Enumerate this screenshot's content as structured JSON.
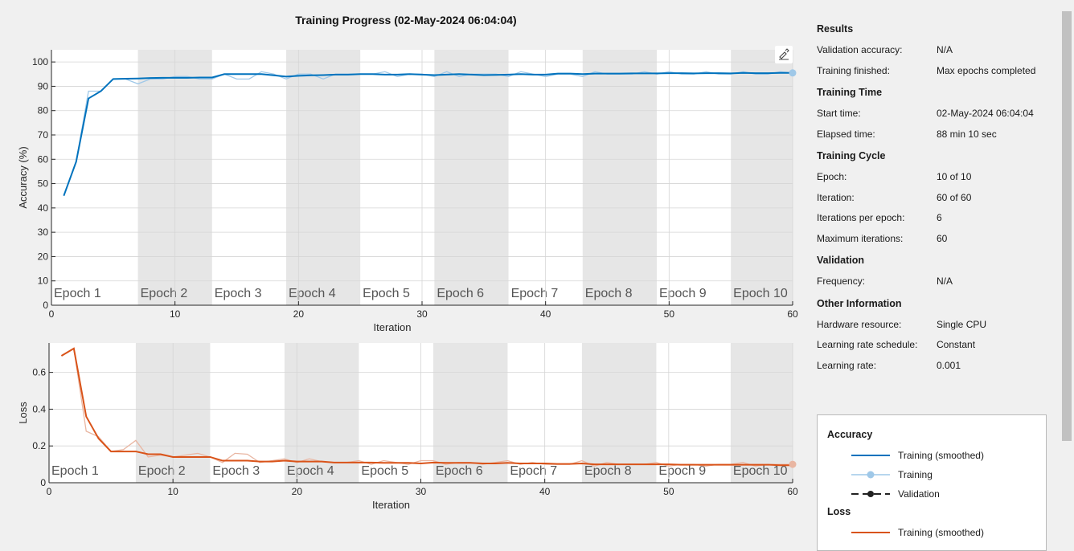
{
  "title": "Training Progress (02-May-2024 06:04:04)",
  "colors": {
    "smoothed": "#0072BD",
    "training": "#9fc8e8",
    "loss_smoothed": "#D95319",
    "loss_training": "#e9b6a2",
    "epoch_shade": "#e6e6e6"
  },
  "info": {
    "sections": [
      {
        "heading": "Results",
        "rows": [
          {
            "key": "Validation accuracy:",
            "value": "N/A"
          },
          {
            "key": "Training finished:",
            "value": "Max epochs completed"
          }
        ]
      },
      {
        "heading": "Training Time",
        "rows": [
          {
            "key": "Start time:",
            "value": "02-May-2024 06:04:04"
          },
          {
            "key": "Elapsed time:",
            "value": "88 min 10 sec"
          }
        ]
      },
      {
        "heading": "Training Cycle",
        "rows": [
          {
            "key": "Epoch:",
            "value": "10 of 10"
          },
          {
            "key": "Iteration:",
            "value": "60 of 60"
          },
          {
            "key": "Iterations per epoch:",
            "value": "6"
          },
          {
            "key": "Maximum iterations:",
            "value": "60"
          }
        ]
      },
      {
        "heading": "Validation",
        "rows": [
          {
            "key": "Frequency:",
            "value": "N/A"
          }
        ]
      },
      {
        "heading": "Other Information",
        "rows": [
          {
            "key": "Hardware resource:",
            "value": "Single CPU"
          },
          {
            "key": "Learning rate schedule:",
            "value": "Constant"
          },
          {
            "key": "Learning rate:",
            "value": "0.001"
          }
        ]
      }
    ]
  },
  "legend": {
    "accuracy_heading": "Accuracy",
    "accuracy_items": [
      {
        "label": "Training (smoothed)",
        "style": "smoothed"
      },
      {
        "label": "Training",
        "style": "training"
      },
      {
        "label": "Validation",
        "style": "validation"
      }
    ],
    "loss_heading": "Loss",
    "loss_items": [
      {
        "label": "Training (smoothed)",
        "style": "loss_smoothed"
      }
    ]
  },
  "chart_data": [
    {
      "type": "line",
      "ylabel": "Accuracy (%)",
      "xlabel": "Iteration",
      "xlim": [
        0,
        60
      ],
      "ylim": [
        0,
        105
      ],
      "xticks": [
        0,
        10,
        20,
        30,
        40,
        50,
        60
      ],
      "yticks": [
        0,
        10,
        20,
        30,
        40,
        50,
        60,
        70,
        80,
        90,
        100
      ],
      "epochs": [
        "Epoch 1",
        "Epoch 2",
        "Epoch 3",
        "Epoch 4",
        "Epoch 5",
        "Epoch 6",
        "Epoch 7",
        "Epoch 8",
        "Epoch 9",
        "Epoch 10"
      ],
      "iterations_per_epoch": 6,
      "x": [
        1,
        2,
        3,
        4,
        5,
        6,
        7,
        8,
        9,
        10,
        11,
        12,
        13,
        14,
        15,
        16,
        17,
        18,
        19,
        20,
        21,
        22,
        23,
        24,
        25,
        26,
        27,
        28,
        29,
        30,
        31,
        32,
        33,
        34,
        35,
        36,
        37,
        38,
        39,
        40,
        41,
        42,
        43,
        44,
        45,
        46,
        47,
        48,
        49,
        50,
        51,
        52,
        53,
        54,
        55,
        56,
        57,
        58,
        59,
        60
      ],
      "series": [
        {
          "name": "Training (smoothed)",
          "values": [
            45,
            59,
            85,
            88,
            93,
            93.1,
            93.2,
            93.4,
            93.5,
            93.5,
            93.5,
            93.6,
            93.6,
            95,
            95,
            95,
            95,
            94.5,
            94,
            94.3,
            94.5,
            94.6,
            94.8,
            94.8,
            95,
            95,
            94.8,
            94.8,
            95,
            94.8,
            94.6,
            94.8,
            95,
            94.8,
            94.6,
            94.7,
            94.8,
            95,
            94.8,
            94.8,
            95.2,
            95.2,
            95,
            95.2,
            95.2,
            95.2,
            95.3,
            95.3,
            95.3,
            95.4,
            95.4,
            95.3,
            95.4,
            95.4,
            95.3,
            95.5,
            95.4,
            95.4,
            95.5,
            95.5
          ]
        },
        {
          "name": "Training",
          "values": [
            45,
            59,
            88,
            88,
            93,
            93,
            91,
            93,
            93,
            94,
            94,
            93,
            93,
            95,
            93,
            93,
            96,
            95,
            93,
            95,
            95,
            93,
            95,
            95,
            95,
            95,
            96,
            94,
            95,
            95,
            94,
            96,
            94,
            95,
            95,
            95,
            94,
            96,
            95,
            94,
            95,
            95,
            94,
            96,
            95,
            95,
            95,
            96,
            95,
            96,
            95,
            95,
            96,
            95,
            95,
            96,
            95,
            95,
            96,
            95.5
          ]
        }
      ]
    },
    {
      "type": "line",
      "ylabel": "Loss",
      "xlabel": "Iteration",
      "xlim": [
        0,
        60
      ],
      "ylim": [
        0,
        0.76
      ],
      "xticks": [
        0,
        10,
        20,
        30,
        40,
        50,
        60
      ],
      "yticks": [
        0,
        0.2,
        0.4,
        0.6
      ],
      "epochs": [
        "Epoch 1",
        "Epoch 2",
        "Epoch 3",
        "Epoch 4",
        "Epoch 5",
        "Epoch 6",
        "Epoch 7",
        "Epoch 8",
        "Epoch 9",
        "Epoch 10"
      ],
      "iterations_per_epoch": 6,
      "x": [
        1,
        2,
        3,
        4,
        5,
        6,
        7,
        8,
        9,
        10,
        11,
        12,
        13,
        14,
        15,
        16,
        17,
        18,
        19,
        20,
        21,
        22,
        23,
        24,
        25,
        26,
        27,
        28,
        29,
        30,
        31,
        32,
        33,
        34,
        35,
        36,
        37,
        38,
        39,
        40,
        41,
        42,
        43,
        44,
        45,
        46,
        47,
        48,
        49,
        50,
        51,
        52,
        53,
        54,
        55,
        56,
        57,
        58,
        59,
        60
      ],
      "series": [
        {
          "name": "Training (smoothed)",
          "values": [
            0.69,
            0.73,
            0.36,
            0.24,
            0.17,
            0.17,
            0.17,
            0.155,
            0.155,
            0.14,
            0.14,
            0.14,
            0.14,
            0.12,
            0.12,
            0.12,
            0.115,
            0.115,
            0.12,
            0.115,
            0.115,
            0.115,
            0.11,
            0.11,
            0.11,
            0.11,
            0.108,
            0.108,
            0.108,
            0.105,
            0.11,
            0.108,
            0.108,
            0.108,
            0.105,
            0.105,
            0.108,
            0.105,
            0.105,
            0.105,
            0.102,
            0.102,
            0.105,
            0.1,
            0.1,
            0.1,
            0.1,
            0.1,
            0.1,
            0.1,
            0.098,
            0.098,
            0.098,
            0.098,
            0.098,
            0.098,
            0.098,
            0.098,
            0.095,
            0.095
          ]
        },
        {
          "name": "Training",
          "values": [
            0.69,
            0.73,
            0.28,
            0.25,
            0.17,
            0.18,
            0.23,
            0.14,
            0.15,
            0.14,
            0.15,
            0.16,
            0.14,
            0.11,
            0.16,
            0.155,
            0.11,
            0.12,
            0.13,
            0.11,
            0.13,
            0.115,
            0.11,
            0.11,
            0.12,
            0.1,
            0.12,
            0.11,
            0.1,
            0.12,
            0.12,
            0.1,
            0.11,
            0.11,
            0.1,
            0.11,
            0.12,
            0.1,
            0.11,
            0.1,
            0.1,
            0.1,
            0.12,
            0.09,
            0.11,
            0.1,
            0.1,
            0.1,
            0.11,
            0.09,
            0.1,
            0.1,
            0.09,
            0.1,
            0.1,
            0.11,
            0.09,
            0.1,
            0.1,
            0.1
          ]
        }
      ]
    }
  ]
}
